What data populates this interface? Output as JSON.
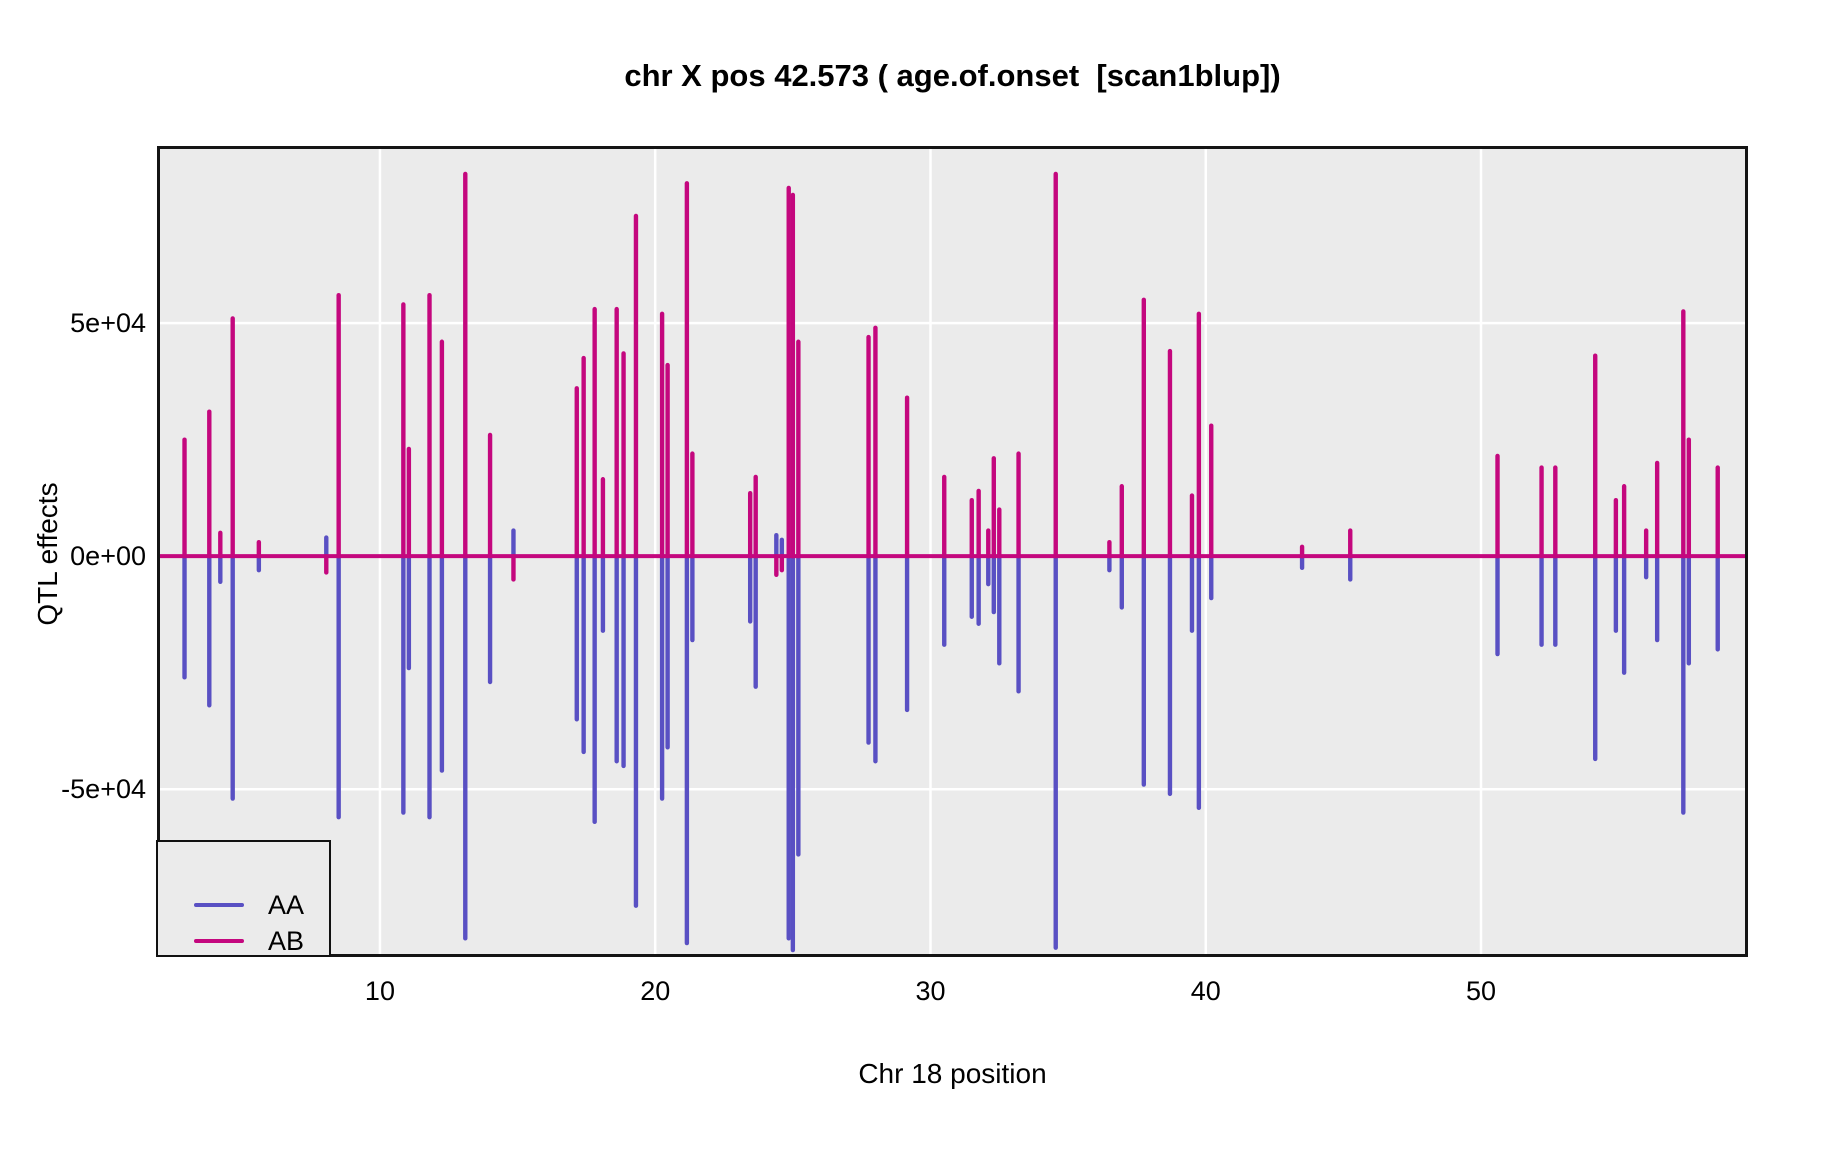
{
  "title": "chr X pos 42.573 ( age.of.onset  [scan1blup])",
  "colors": {
    "aa_line": "#5950C3",
    "ab_line": "#C4077E",
    "panel_background": "#EBEBEB",
    "gridline": "#FFFFFF",
    "panel_border": "#141414",
    "text": "#000000"
  },
  "chart_data": {
    "type": "line",
    "title": "chr X pos 42.573 ( age.of.onset  [scan1blup])",
    "xlabel": "Chr 18 position",
    "ylabel": "QTL effects",
    "legend_position": "bottom-left",
    "grid": true,
    "xlim": [
      1.9,
      59.7
    ],
    "ylim": [
      -86000,
      88000
    ],
    "x_ticks": [
      10,
      20,
      30,
      40,
      50
    ],
    "y_ticks": [
      {
        "value": 50000,
        "label": "5e+04"
      },
      {
        "value": 0,
        "label": "0e+00"
      },
      {
        "value": -50000,
        "label": "-5e+04"
      }
    ],
    "baseline": 0,
    "series": [
      {
        "name": "AA",
        "color": "#5950C3",
        "spikes": [
          [
            2.9,
            -26000
          ],
          [
            3.8,
            -32000
          ],
          [
            4.2,
            -5500
          ],
          [
            4.65,
            -52000
          ],
          [
            5.6,
            -3000
          ],
          [
            8.05,
            4000
          ],
          [
            8.5,
            -56000
          ],
          [
            10.85,
            -55000
          ],
          [
            11.05,
            -24000
          ],
          [
            11.8,
            -56000
          ],
          [
            12.25,
            -46000
          ],
          [
            13.1,
            -82000
          ],
          [
            14.0,
            -27000
          ],
          [
            14.85,
            5500
          ],
          [
            17.15,
            -35000
          ],
          [
            17.4,
            -42000
          ],
          [
            17.8,
            -57000
          ],
          [
            18.1,
            -16000
          ],
          [
            18.6,
            -44000
          ],
          [
            18.85,
            -45000
          ],
          [
            19.3,
            -75000
          ],
          [
            20.25,
            -52000
          ],
          [
            20.45,
            -41000
          ],
          [
            21.15,
            -83000
          ],
          [
            21.35,
            -18000
          ],
          [
            23.45,
            -14000
          ],
          [
            23.65,
            -28000
          ],
          [
            24.4,
            4500
          ],
          [
            24.6,
            3500
          ],
          [
            24.85,
            -82000
          ],
          [
            25.0,
            -84500
          ],
          [
            25.2,
            -64000
          ],
          [
            27.75,
            -40000
          ],
          [
            28.0,
            -44000
          ],
          [
            29.15,
            -33000
          ],
          [
            30.5,
            -19000
          ],
          [
            31.5,
            -13000
          ],
          [
            31.75,
            -14500
          ],
          [
            32.1,
            -6000
          ],
          [
            32.3,
            -12000
          ],
          [
            32.5,
            -23000
          ],
          [
            33.2,
            -29000
          ],
          [
            34.55,
            -84000
          ],
          [
            36.5,
            -3000
          ],
          [
            36.95,
            -11000
          ],
          [
            37.75,
            -49000
          ],
          [
            38.7,
            -51000
          ],
          [
            39.5,
            -16000
          ],
          [
            39.75,
            -54000
          ],
          [
            40.2,
            -9000
          ],
          [
            43.5,
            -2500
          ],
          [
            45.25,
            -5000
          ],
          [
            50.6,
            -21000
          ],
          [
            52.2,
            -19000
          ],
          [
            52.7,
            -19000
          ],
          [
            54.15,
            -43500
          ],
          [
            54.9,
            -16000
          ],
          [
            55.2,
            -25000
          ],
          [
            56.0,
            -4500
          ],
          [
            56.4,
            -18000
          ],
          [
            57.35,
            -55000
          ],
          [
            57.55,
            -23000
          ],
          [
            58.6,
            -20000
          ]
        ]
      },
      {
        "name": "AB",
        "color": "#C4077E",
        "spikes": [
          [
            2.9,
            25000
          ],
          [
            3.8,
            31000
          ],
          [
            4.2,
            5000
          ],
          [
            4.65,
            51000
          ],
          [
            5.6,
            3000
          ],
          [
            8.05,
            -3500
          ],
          [
            8.5,
            56000
          ],
          [
            10.85,
            54000
          ],
          [
            11.05,
            23000
          ],
          [
            11.8,
            56000
          ],
          [
            12.25,
            46000
          ],
          [
            13.1,
            82000
          ],
          [
            14.0,
            26000
          ],
          [
            14.85,
            -5000
          ],
          [
            17.15,
            36000
          ],
          [
            17.4,
            42500
          ],
          [
            17.8,
            53000
          ],
          [
            18.1,
            16500
          ],
          [
            18.6,
            53000
          ],
          [
            18.85,
            43500
          ],
          [
            19.3,
            73000
          ],
          [
            20.25,
            52000
          ],
          [
            20.45,
            41000
          ],
          [
            21.15,
            80000
          ],
          [
            21.35,
            22000
          ],
          [
            23.45,
            13500
          ],
          [
            23.65,
            17000
          ],
          [
            24.4,
            -4000
          ],
          [
            24.6,
            -3000
          ],
          [
            24.85,
            79000
          ],
          [
            25.0,
            77500
          ],
          [
            25.2,
            46000
          ],
          [
            27.75,
            47000
          ],
          [
            28.0,
            49000
          ],
          [
            29.15,
            34000
          ],
          [
            30.5,
            17000
          ],
          [
            31.5,
            12000
          ],
          [
            31.75,
            14000
          ],
          [
            32.1,
            5500
          ],
          [
            32.3,
            21000
          ],
          [
            32.5,
            10000
          ],
          [
            33.2,
            22000
          ],
          [
            34.55,
            82000
          ],
          [
            36.5,
            3000
          ],
          [
            36.95,
            15000
          ],
          [
            37.75,
            55000
          ],
          [
            38.7,
            44000
          ],
          [
            39.5,
            13000
          ],
          [
            39.75,
            52000
          ],
          [
            40.2,
            28000
          ],
          [
            43.5,
            2000
          ],
          [
            45.25,
            5500
          ],
          [
            50.6,
            21500
          ],
          [
            52.2,
            19000
          ],
          [
            52.7,
            19000
          ],
          [
            54.15,
            43000
          ],
          [
            54.9,
            12000
          ],
          [
            55.2,
            15000
          ],
          [
            56.0,
            5500
          ],
          [
            56.4,
            20000
          ],
          [
            57.35,
            52500
          ],
          [
            57.55,
            25000
          ],
          [
            58.6,
            19000
          ]
        ]
      }
    ]
  },
  "legend": {
    "entries": [
      {
        "label": "AA"
      },
      {
        "label": "AB"
      }
    ]
  }
}
